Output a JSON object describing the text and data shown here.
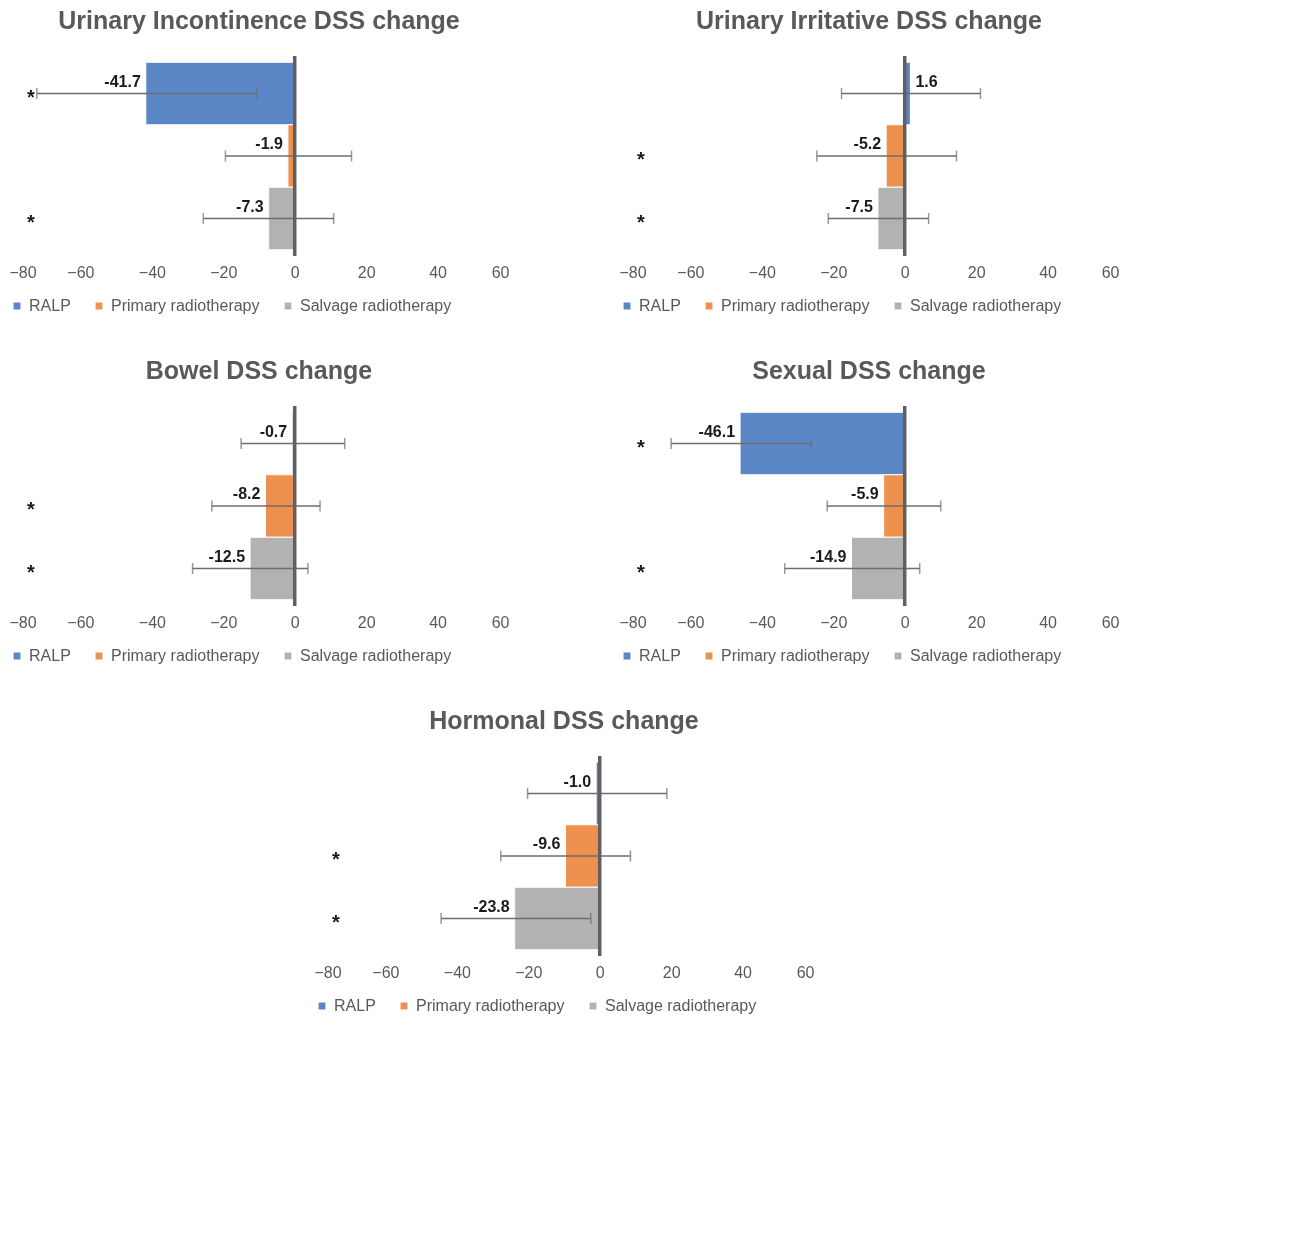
{
  "chart_data": [
    {
      "type": "bar",
      "orientation": "horizontal",
      "title": "Urinary Incontinence DSS change",
      "categories": [
        null
      ],
      "xlim": [
        -80,
        60
      ],
      "xticks": [
        -80,
        -60,
        -40,
        -20,
        0,
        20,
        40,
        60
      ],
      "grid": false,
      "legend": "bottom",
      "series": [
        {
          "name": "RALP",
          "color": "#5b87c6",
          "values": [
            -41.7
          ],
          "value_labels": [
            "-41.7"
          ],
          "errors": [
            [
              -72.2,
              -10.7
            ]
          ]
        },
        {
          "name": "Primary radiotherapy",
          "color": "#ee914e",
          "values": [
            -1.9
          ],
          "value_labels": [
            "-1.9"
          ],
          "errors": [
            [
              -19.4,
              15.9
            ]
          ]
        },
        {
          "name": "Salvage radiotherapy",
          "color": "#b2b2b2",
          "values": [
            -7.3
          ],
          "value_labels": [
            "-7.3"
          ],
          "errors": [
            [
              -25.6,
              10.9
            ]
          ]
        }
      ],
      "ref_lines": [
        {
          "axis": "x",
          "value": 0,
          "label": null,
          "color": "#606060"
        }
      ],
      "annotations": [
        "*",
        null,
        "*"
      ]
    },
    {
      "type": "bar",
      "orientation": "horizontal",
      "title": "Urinary Irritative DSS change",
      "categories": [
        null
      ],
      "xlim": [
        -80,
        60
      ],
      "xticks": [
        -80,
        -60,
        -40,
        -20,
        0,
        20,
        40,
        60
      ],
      "grid": false,
      "legend": "bottom",
      "series": [
        {
          "name": "RALP",
          "color": "#5b87c6",
          "values": [
            1.6
          ],
          "value_labels": [
            "1.6"
          ],
          "errors": [
            [
              -17.7,
              21.2
            ]
          ]
        },
        {
          "name": "Primary radiotherapy",
          "color": "#ee914e",
          "values": [
            -5.2
          ],
          "value_labels": [
            "-5.2"
          ],
          "errors": [
            [
              -24.6,
              14.5
            ]
          ]
        },
        {
          "name": "Salvage radiotherapy",
          "color": "#b2b2b2",
          "values": [
            -7.5
          ],
          "value_labels": [
            "-7.5"
          ],
          "errors": [
            [
              -21.4,
              6.7
            ]
          ]
        }
      ],
      "ref_lines": [
        {
          "axis": "x",
          "value": 0,
          "label": null,
          "color": "#606060"
        }
      ],
      "annotations": [
        null,
        "*",
        "*"
      ]
    },
    {
      "type": "bar",
      "orientation": "horizontal",
      "title": "Bowel DSS change",
      "categories": [
        null
      ],
      "xlim": [
        -80,
        60
      ],
      "xticks": [
        -80,
        -60,
        -40,
        -20,
        0,
        20,
        40,
        60
      ],
      "grid": false,
      "legend": "bottom",
      "series": [
        {
          "name": "RALP",
          "color": "#5b87c6",
          "values": [
            -0.7
          ],
          "value_labels": [
            "-0.7"
          ],
          "errors": [
            [
              -15.0,
              14.0
            ]
          ]
        },
        {
          "name": "Primary radiotherapy",
          "color": "#ee914e",
          "values": [
            -8.2
          ],
          "value_labels": [
            "-8.2"
          ],
          "errors": [
            [
              -23.2,
              7.1
            ]
          ]
        },
        {
          "name": "Salvage radiotherapy",
          "color": "#b2b2b2",
          "values": [
            -12.5
          ],
          "value_labels": [
            "-12.5"
          ],
          "errors": [
            [
              -28.6,
              3.7
            ]
          ]
        }
      ],
      "ref_lines": [
        {
          "axis": "x",
          "value": 0,
          "label": null,
          "color": "#606060"
        }
      ],
      "annotations": [
        null,
        "*",
        "*"
      ]
    },
    {
      "type": "bar",
      "orientation": "horizontal",
      "title": "Sexual DSS change",
      "categories": [
        null
      ],
      "xlim": [
        -80,
        60
      ],
      "xticks": [
        -80,
        -60,
        -40,
        -20,
        0,
        20,
        40,
        60
      ],
      "grid": false,
      "legend": "bottom",
      "series": [
        {
          "name": "RALP",
          "color": "#5b87c6",
          "values": [
            -46.1
          ],
          "value_labels": [
            "-46.1"
          ],
          "errors": [
            [
              -65.4,
              -26.2
            ]
          ]
        },
        {
          "name": "Primary radiotherapy",
          "color": "#ee914e",
          "values": [
            -5.9
          ],
          "value_labels": [
            "-5.9"
          ],
          "errors": [
            [
              -21.7,
              10.1
            ]
          ]
        },
        {
          "name": "Salvage radiotherapy",
          "color": "#b2b2b2",
          "values": [
            -14.9
          ],
          "value_labels": [
            "-14.9"
          ],
          "errors": [
            [
              -33.6,
              4.2
            ]
          ]
        }
      ],
      "ref_lines": [
        {
          "axis": "x",
          "value": 0,
          "label": null,
          "color": "#606060"
        }
      ],
      "annotations": [
        "*",
        null,
        "*"
      ]
    },
    {
      "type": "bar",
      "orientation": "horizontal",
      "title": "Hormonal DSS change",
      "categories": [
        null
      ],
      "xlim": [
        -80,
        60
      ],
      "xticks": [
        -80,
        -60,
        -40,
        -20,
        0,
        20,
        40,
        60
      ],
      "grid": false,
      "legend": "bottom",
      "series": [
        {
          "name": "RALP",
          "color": "#5b87c6",
          "values": [
            -1.0
          ],
          "value_labels": [
            "-1.0"
          ],
          "errors": [
            [
              -20.2,
              18.8
            ]
          ]
        },
        {
          "name": "Primary radiotherapy",
          "color": "#ee914e",
          "values": [
            -9.6
          ],
          "value_labels": [
            "-9.6"
          ],
          "errors": [
            [
              -27.7,
              8.6
            ]
          ]
        },
        {
          "name": "Salvage radiotherapy",
          "color": "#b2b2b2",
          "values": [
            -23.8
          ],
          "value_labels": [
            "-23.8"
          ],
          "errors": [
            [
              -44.4,
              -2.5
            ]
          ]
        }
      ],
      "ref_lines": [
        {
          "axis": "x",
          "value": 0,
          "label": null,
          "color": "#606060"
        }
      ],
      "annotations": [
        null,
        "*",
        "*"
      ]
    }
  ]
}
